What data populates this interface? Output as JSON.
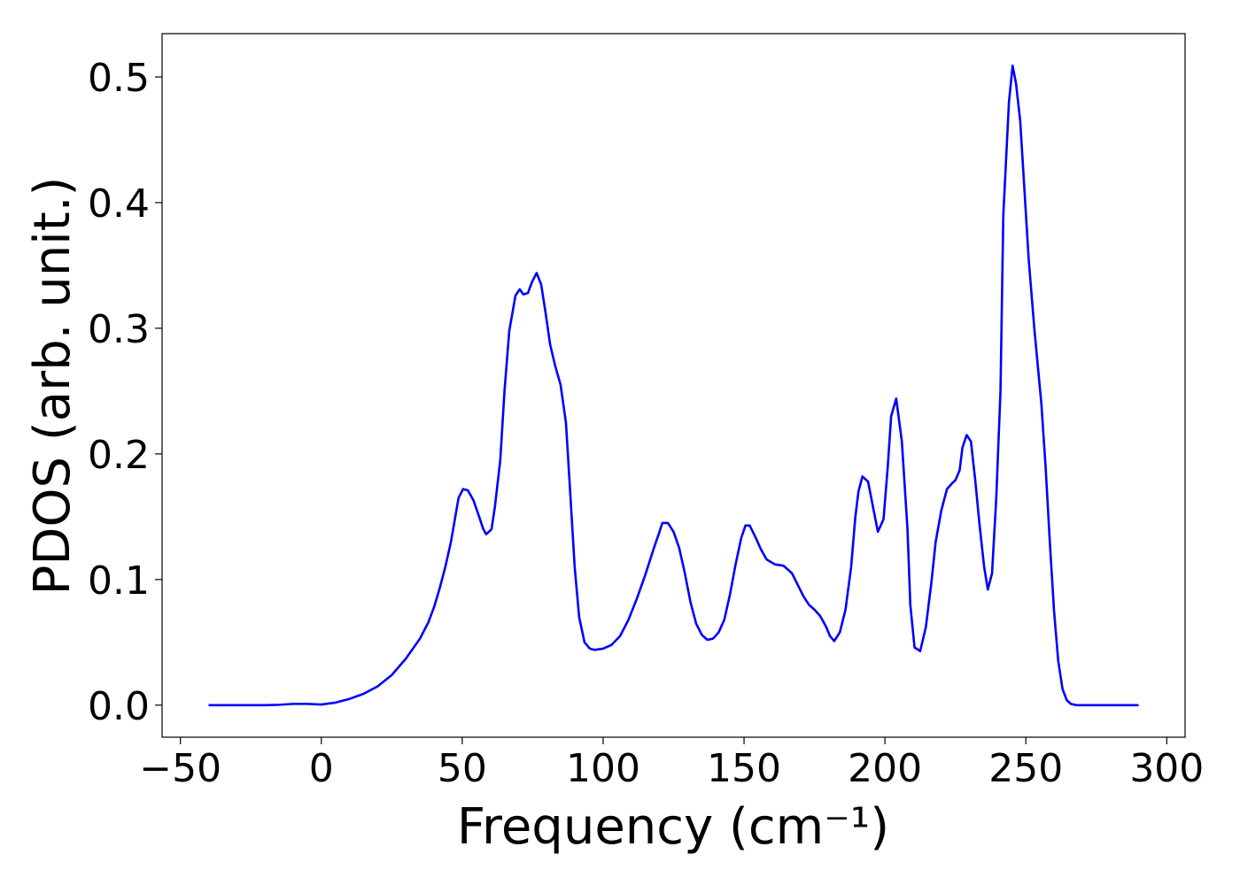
{
  "chart_data": {
    "type": "line",
    "xlabel": "Frequency (cm⁻¹)",
    "ylabel": "PDOS (arb. unit.)",
    "x": [
      -40,
      -30,
      -20,
      -15,
      -10,
      -5,
      0,
      5,
      10,
      15,
      20,
      25,
      30,
      35,
      38,
      40,
      42,
      44,
      46,
      48.7,
      50.3,
      52,
      54,
      56,
      57.5,
      58.5,
      60.4,
      61.6,
      63.5,
      65,
      66.7,
      68.9,
      70.4,
      71.7,
      73.3,
      74.8,
      76.4,
      78,
      79.6,
      81.2,
      83,
      84.9,
      86.8,
      88.3,
      89.9,
      91.5,
      93.4,
      95.3,
      97,
      100,
      103,
      106,
      109,
      112,
      115,
      118,
      120,
      121,
      123,
      125,
      127,
      129,
      131,
      133,
      135,
      137,
      139,
      141,
      143,
      145,
      147,
      149,
      150.5,
      152,
      154,
      156,
      158,
      161,
      164,
      167,
      169,
      171,
      173,
      175,
      177,
      179,
      180.5,
      182,
      184,
      186,
      188,
      189.5,
      190.6,
      192,
      194,
      196,
      197.5,
      199.5,
      201,
      202.2,
      204,
      206,
      208,
      209,
      210.5,
      212.5,
      214.5,
      216.5,
      218,
      220,
      222,
      224,
      225,
      226.5,
      227.5,
      229,
      230.5,
      232,
      233.5,
      235.2,
      236.5,
      238,
      239.5,
      241,
      242,
      244,
      245.3,
      246.5,
      248,
      249.5,
      251,
      253,
      255.5,
      257,
      258.5,
      260,
      261.5,
      263,
      264.5,
      266,
      268,
      270,
      280,
      290
    ],
    "series": [
      {
        "name": "PDOS",
        "color": "#0000ff",
        "values": [
          0,
          0,
          0,
          0.0003,
          0.001,
          0.001,
          0.0005,
          0.002,
          0.005,
          0.009,
          0.015,
          0.024,
          0.037,
          0.053,
          0.066,
          0.078,
          0.093,
          0.11,
          0.13,
          0.165,
          0.172,
          0.171,
          0.163,
          0.15,
          0.14,
          0.136,
          0.14,
          0.158,
          0.195,
          0.25,
          0.298,
          0.326,
          0.331,
          0.327,
          0.328,
          0.337,
          0.344,
          0.335,
          0.312,
          0.287,
          0.27,
          0.255,
          0.225,
          0.17,
          0.11,
          0.07,
          0.05,
          0.045,
          0.044,
          0.045,
          0.048,
          0.055,
          0.068,
          0.085,
          0.104,
          0.125,
          0.138,
          0.145,
          0.145,
          0.138,
          0.125,
          0.105,
          0.082,
          0.065,
          0.056,
          0.052,
          0.053,
          0.058,
          0.068,
          0.088,
          0.112,
          0.133,
          0.143,
          0.143,
          0.134,
          0.124,
          0.116,
          0.112,
          0.111,
          0.105,
          0.096,
          0.087,
          0.08,
          0.076,
          0.071,
          0.063,
          0.055,
          0.051,
          0.058,
          0.076,
          0.11,
          0.15,
          0.17,
          0.182,
          0.178,
          0.155,
          0.138,
          0.148,
          0.19,
          0.23,
          0.244,
          0.21,
          0.14,
          0.08,
          0.046,
          0.043,
          0.062,
          0.098,
          0.13,
          0.155,
          0.172,
          0.177,
          0.179,
          0.187,
          0.205,
          0.215,
          0.21,
          0.18,
          0.145,
          0.11,
          0.092,
          0.105,
          0.165,
          0.25,
          0.39,
          0.48,
          0.509,
          0.495,
          0.465,
          0.41,
          0.355,
          0.3,
          0.24,
          0.19,
          0.13,
          0.075,
          0.035,
          0.013,
          0.004,
          0.001,
          0,
          0,
          0,
          0
        ]
      }
    ],
    "xlim": [
      -56.5,
      306.5
    ],
    "ylim": [
      -0.0255,
      0.5345
    ],
    "xticks": [
      {
        "value": -50,
        "label": "−50"
      },
      0,
      50,
      100,
      150,
      200,
      250,
      300
    ],
    "yticks": [
      {
        "value": 0,
        "label": "0.0"
      },
      0.1,
      0.2,
      0.3,
      0.4,
      0.5
    ]
  }
}
